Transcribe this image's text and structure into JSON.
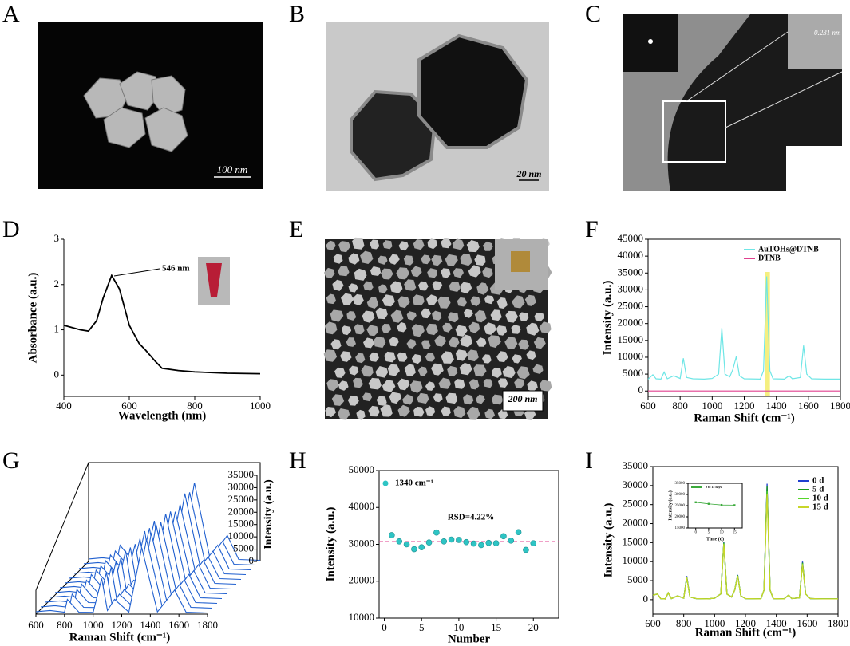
{
  "panels": [
    "A",
    "B",
    "C",
    "D",
    "E",
    "F",
    "G",
    "H",
    "I"
  ],
  "images": {
    "A": {
      "scale_bar": "100 nm"
    },
    "B": {
      "scale_bar": "20 nm"
    },
    "C": {
      "lattice": "0.231 nm"
    },
    "E": {
      "scale_bar": "200 nm"
    }
  },
  "chart_data": [
    {
      "type": "line",
      "xlabel": "Wavelength (nm)",
      "ylabel": "Absorbance (a.u.)",
      "annotation": "546 nm",
      "color": "#000000",
      "x": [
        400,
        450,
        475,
        500,
        520,
        546,
        570,
        600,
        630,
        650,
        680,
        700,
        750,
        800,
        900,
        1000
      ],
      "values": [
        1.1,
        1.0,
        0.97,
        1.2,
        1.7,
        2.2,
        1.9,
        1.1,
        0.7,
        0.55,
        0.3,
        0.15,
        0.1,
        0.07,
        0.04,
        0.03
      ],
      "xlim": [
        400,
        1000
      ],
      "ylim": [
        -0.47,
        3
      ],
      "xticks": [
        400,
        600,
        800,
        1000
      ],
      "yticks": [
        0,
        1,
        2,
        3
      ]
    },
    {
      "type": "line",
      "xlabel": "Raman Shift (cm⁻¹)",
      "ylabel": "Intensity (a.u.)",
      "legend": "upper right",
      "highlight_band": [
        1330,
        1360
      ],
      "series": [
        {
          "name": "AuTOHs@DTNB",
          "color": "#6fe6e6",
          "x": [
            600,
            630,
            650,
            680,
            700,
            720,
            760,
            800,
            820,
            840,
            880,
            950,
            1000,
            1040,
            1060,
            1080,
            1110,
            1130,
            1150,
            1170,
            1200,
            1300,
            1320,
            1340,
            1360,
            1380,
            1450,
            1480,
            1500,
            1550,
            1570,
            1590,
            1620,
            1700,
            1800
          ],
          "values": [
            3500,
            4800,
            3600,
            3500,
            5600,
            3600,
            4500,
            3700,
            9700,
            4000,
            3600,
            3500,
            3700,
            5000,
            18700,
            5000,
            4200,
            6500,
            10200,
            4500,
            3600,
            3500,
            6000,
            34000,
            6000,
            3600,
            3500,
            4500,
            3600,
            4000,
            13500,
            5000,
            3600,
            3500,
            3500
          ]
        },
        {
          "name": "DTNB",
          "color": "#e0408f",
          "x": [
            600,
            1800
          ],
          "values": [
            0,
            0
          ]
        }
      ],
      "xlim": [
        600,
        1800
      ],
      "ylim": [
        -1600,
        45000
      ],
      "xticks": [
        600,
        800,
        1000,
        1200,
        1400,
        1600,
        1800
      ],
      "yticks": [
        0,
        5000,
        10000,
        15000,
        20000,
        25000,
        30000,
        35000,
        40000,
        45000
      ]
    },
    {
      "type": "waterfall",
      "xlabel": "Raman Shift (cm⁻¹)",
      "ylabel": "Intensity (a.u.)",
      "x": [
        600,
        700,
        800,
        820,
        900,
        1000,
        1060,
        1100,
        1150,
        1250,
        1340,
        1450,
        1570,
        1650,
        1800
      ],
      "series": [
        {
          "color": "#1f5fcf",
          "values": [
            1000,
            1500,
            800,
            6000,
            800,
            700,
            14500,
            1500,
            6000,
            800,
            27000,
            900,
            9800,
            800,
            500
          ]
        },
        {
          "color": "#1f5fcf",
          "values": [
            1000,
            1500,
            800,
            6200,
            800,
            700,
            15000,
            1500,
            6200,
            800,
            28500,
            900,
            10000,
            800,
            500
          ]
        },
        {
          "color": "#1f5fcf",
          "values": [
            1000,
            1500,
            800,
            6100,
            800,
            700,
            15200,
            1500,
            6100,
            800,
            29000,
            900,
            10100,
            800,
            500
          ]
        },
        {
          "color": "#1f5fcf",
          "values": [
            1000,
            1500,
            800,
            6300,
            800,
            700,
            15600,
            1500,
            6300,
            800,
            30500,
            900,
            10300,
            800,
            500
          ]
        },
        {
          "color": "#1f5fcf",
          "values": [
            1000,
            1500,
            800,
            6000,
            800,
            700,
            15000,
            1500,
            6000,
            800,
            29500,
            900,
            9900,
            800,
            500
          ]
        },
        {
          "color": "#1f5fcf",
          "values": [
            1000,
            1500,
            800,
            6400,
            800,
            700,
            16000,
            1500,
            6400,
            800,
            31000,
            900,
            10400,
            800,
            500
          ]
        },
        {
          "color": "#1f5fcf",
          "values": [
            1000,
            1500,
            800,
            6200,
            800,
            700,
            15400,
            1500,
            6200,
            800,
            30000,
            900,
            10100,
            800,
            500
          ]
        },
        {
          "color": "#1f5fcf",
          "values": [
            1000,
            1500,
            800,
            5900,
            800,
            700,
            14800,
            1500,
            5900,
            800,
            28000,
            900,
            9700,
            800,
            500
          ]
        },
        {
          "color": "#1f5fcf",
          "values": [
            1000,
            1500,
            800,
            6100,
            800,
            700,
            15100,
            1500,
            6100,
            800,
            29000,
            900,
            10000,
            800,
            500
          ]
        },
        {
          "color": "#1f5fcf",
          "values": [
            1000,
            1500,
            800,
            6500,
            800,
            700,
            16200,
            1500,
            6500,
            800,
            31500,
            900,
            10500,
            800,
            500
          ]
        },
        {
          "color": "#1f5fcf",
          "values": [
            1000,
            1500,
            800,
            6200,
            800,
            700,
            15500,
            1500,
            6200,
            800,
            30000,
            900,
            10200,
            800,
            500
          ]
        },
        {
          "color": "#1f5fcf",
          "values": [
            1000,
            1500,
            800,
            6600,
            800,
            700,
            16500,
            1500,
            6600,
            800,
            32000,
            900,
            10600,
            800,
            500
          ]
        }
      ],
      "xlim": [
        600,
        1800
      ],
      "ylim": [
        0,
        35000
      ],
      "xticks": [
        600,
        800,
        1000,
        1200,
        1400,
        1600,
        1800
      ],
      "yticks": [
        0,
        5000,
        10000,
        15000,
        20000,
        25000,
        30000,
        35000
      ]
    },
    {
      "type": "scatter",
      "xlabel": "Number",
      "ylabel": "Intensity (a.u.)",
      "annotation": "RSD=4.22%",
      "reference_line": 30700,
      "series": [
        {
          "name": "1340 cm⁻¹",
          "color": "#2ec4c4",
          "x": [
            1,
            2,
            3,
            4,
            5,
            6,
            7,
            8,
            9,
            10,
            11,
            12,
            13,
            14,
            15,
            16,
            17,
            18,
            19,
            20
          ],
          "values": [
            32500,
            30800,
            30000,
            28700,
            29200,
            30500,
            33200,
            30800,
            31300,
            31200,
            30600,
            30200,
            29800,
            30400,
            30300,
            32200,
            31000,
            33300,
            28500,
            30300
          ]
        }
      ],
      "xlim": [
        -0.7,
        23.4
      ],
      "ylim": [
        10000,
        50000
      ],
      "xticks": [
        0,
        5,
        10,
        15,
        20
      ],
      "yticks": [
        10000,
        20000,
        30000,
        40000,
        50000
      ]
    },
    {
      "type": "line",
      "xlabel": "Raman Shift (cm⁻¹)",
      "ylabel": "Intensity (a.u.)",
      "legend": "upper right",
      "series": [
        {
          "name": "0 d",
          "color": "#1f3fcf",
          "x": [
            600,
            630,
            650,
            680,
            700,
            720,
            760,
            800,
            820,
            840,
            880,
            950,
            1000,
            1040,
            1060,
            1080,
            1110,
            1130,
            1150,
            1170,
            1200,
            1300,
            1320,
            1340,
            1360,
            1380,
            1450,
            1480,
            1500,
            1550,
            1570,
            1590,
            1620,
            1700,
            1800
          ],
          "values": [
            1200,
            1500,
            300,
            200,
            1800,
            300,
            1000,
            400,
            6200,
            700,
            300,
            200,
            400,
            1500,
            15200,
            1500,
            700,
            2500,
            6500,
            1000,
            300,
            200,
            2500,
            30500,
            2500,
            300,
            200,
            1200,
            300,
            500,
            10000,
            1500,
            300,
            200,
            200
          ]
        },
        {
          "name": "5 d",
          "color": "#1a9a1a",
          "x": [
            600,
            630,
            650,
            680,
            700,
            720,
            760,
            800,
            820,
            840,
            880,
            950,
            1000,
            1040,
            1060,
            1080,
            1110,
            1130,
            1150,
            1170,
            1200,
            1300,
            1320,
            1340,
            1360,
            1380,
            1450,
            1480,
            1500,
            1550,
            1570,
            1590,
            1620,
            1700,
            1800
          ],
          "values": [
            1200,
            1500,
            300,
            200,
            1800,
            300,
            1000,
            400,
            6000,
            700,
            300,
            200,
            400,
            1500,
            15000,
            1500,
            700,
            2500,
            6400,
            1000,
            300,
            200,
            2500,
            29800,
            2500,
            300,
            200,
            1200,
            300,
            500,
            9700,
            1500,
            300,
            200,
            200
          ]
        },
        {
          "name": "10 d",
          "color": "#55d62a",
          "x": [
            600,
            630,
            650,
            680,
            700,
            720,
            760,
            800,
            820,
            840,
            880,
            950,
            1000,
            1040,
            1060,
            1080,
            1110,
            1130,
            1150,
            1170,
            1200,
            1300,
            1320,
            1340,
            1360,
            1380,
            1450,
            1480,
            1500,
            1550,
            1570,
            1590,
            1620,
            1700,
            1800
          ],
          "values": [
            1200,
            1500,
            300,
            200,
            1800,
            300,
            1000,
            400,
            5900,
            700,
            300,
            200,
            400,
            1500,
            14800,
            1500,
            700,
            2500,
            6300,
            1000,
            300,
            200,
            2500,
            28500,
            2500,
            300,
            200,
            1200,
            300,
            500,
            9500,
            1500,
            300,
            200,
            200
          ]
        },
        {
          "name": "15 d",
          "color": "#c8d62a",
          "x": [
            600,
            630,
            650,
            680,
            700,
            720,
            760,
            800,
            820,
            840,
            880,
            950,
            1000,
            1040,
            1060,
            1080,
            1110,
            1130,
            1150,
            1170,
            1200,
            1300,
            1320,
            1340,
            1360,
            1380,
            1450,
            1480,
            1500,
            1550,
            1570,
            1590,
            1620,
            1700,
            1800
          ],
          "values": [
            1200,
            1500,
            300,
            200,
            1800,
            300,
            1000,
            400,
            5800,
            700,
            300,
            200,
            400,
            1500,
            14600,
            1500,
            700,
            2500,
            6200,
            1000,
            300,
            200,
            2500,
            27800,
            2500,
            300,
            200,
            1200,
            300,
            500,
            9300,
            1500,
            300,
            200,
            200
          ]
        }
      ],
      "xlim": [
        600,
        1800
      ],
      "ylim": [
        -3800,
        35000
      ],
      "xticks": [
        600,
        800,
        1000,
        1200,
        1400,
        1600,
        1800
      ],
      "yticks": [
        0,
        5000,
        10000,
        15000,
        20000,
        25000,
        30000,
        35000
      ]
    },
    {
      "type": "line",
      "xlabel": "Time (d)",
      "ylabel": "Intensity (a.u.)",
      "series": [
        {
          "name": "0 to 15 days",
          "color": "#3caa3c",
          "x": [
            0,
            5,
            10,
            15
          ],
          "values": [
            26500,
            25800,
            25300,
            25200
          ]
        }
      ],
      "xlim": [
        -3,
        18
      ],
      "ylim": [
        15000,
        35000
      ],
      "xticks": [
        0,
        5,
        10,
        15
      ],
      "yticks": [
        15000,
        20000,
        25000,
        30000,
        35000
      ]
    }
  ]
}
